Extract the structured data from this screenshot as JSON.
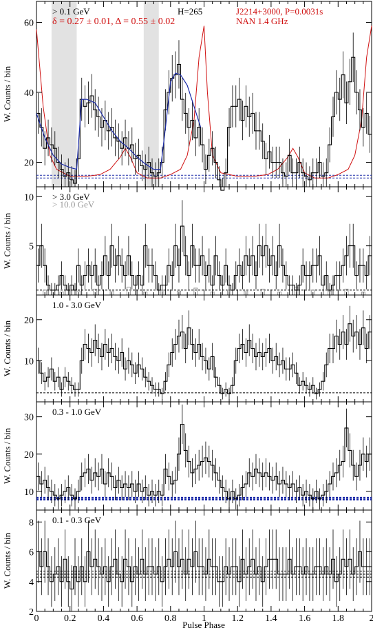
{
  "figure": {
    "xlabel": "Pulse Phase",
    "x_ticks": [
      "0",
      "0.2",
      "0.4",
      "0.6",
      "0.8",
      "1",
      "1.2",
      "1.4",
      "1.6",
      "1.8",
      "2"
    ]
  },
  "colors": {
    "axis": "#000000",
    "histogram": "#000000",
    "radio": "#d01010",
    "fit": "#1a2aa8",
    "background_line": "#1a2aa8",
    "excluded_region": "#e2e2e2",
    "high_energy": "#999999",
    "label_red": "#d01010"
  },
  "chart_data": [
    {
      "type": "line",
      "panel": "> 0.1 GeV",
      "ylabel": "W. Counts / bin",
      "ylim": [
        13,
        66
      ],
      "y_ticks": [
        20,
        40,
        60
      ],
      "label": "> 0.1 GeV",
      "h_test": "H=265",
      "source": "J2214+3000, P=0.0031s",
      "radio": "NAN 1.4 GHz",
      "fit_params": "δ = 0.27 ± 0.01, Δ = 0.55 ± 0.02",
      "shaded_phases": [
        [
          0.09,
          0.24
        ],
        [
          0.64,
          0.73
        ]
      ],
      "background_levels": [
        15.5,
        16.3
      ],
      "x_bin_width": 0.02,
      "values": [
        34,
        30,
        24,
        27,
        25,
        24,
        20,
        18,
        16,
        17,
        15,
        14,
        21,
        38,
        36,
        37,
        39,
        35,
        33,
        30,
        32,
        29,
        30,
        27,
        26,
        24,
        27,
        24,
        25,
        21,
        22,
        19,
        18,
        20,
        17,
        16,
        17,
        20,
        35,
        40,
        44,
        45,
        48,
        38,
        34,
        30,
        32,
        27,
        30,
        25,
        18,
        22,
        24,
        20,
        15,
        12,
        17,
        30,
        36,
        36,
        38,
        32,
        36,
        33,
        34,
        29,
        29,
        26,
        21,
        23,
        20,
        20,
        20,
        17,
        16,
        22,
        17,
        17,
        20,
        17,
        16,
        15,
        17,
        17,
        20,
        16,
        17,
        25,
        33,
        40,
        38,
        45,
        37,
        43,
        50,
        40,
        35,
        30,
        34,
        28
      ],
      "fit_curve": [
        [
          0.0,
          34
        ],
        [
          0.05,
          27
        ],
        [
          0.1,
          22
        ],
        [
          0.15,
          19.5
        ],
        [
          0.2,
          18.5
        ],
        [
          0.24,
          18
        ],
        [
          0.27,
          38
        ],
        [
          0.3,
          38
        ],
        [
          0.35,
          37
        ],
        [
          0.4,
          33
        ],
        [
          0.45,
          29
        ],
        [
          0.5,
          26
        ],
        [
          0.55,
          24
        ],
        [
          0.6,
          21.5
        ],
        [
          0.65,
          19.5
        ],
        [
          0.7,
          18
        ],
        [
          0.74,
          18
        ],
        [
          0.77,
          30
        ],
        [
          0.8,
          43
        ],
        [
          0.83,
          45.5
        ],
        [
          0.86,
          45
        ],
        [
          0.9,
          42
        ],
        [
          0.94,
          36
        ],
        [
          0.98,
          30
        ]
      ],
      "radio_profile": [
        [
          0.0,
          58
        ],
        [
          0.04,
          36
        ],
        [
          0.08,
          22
        ],
        [
          0.12,
          18
        ],
        [
          0.2,
          16
        ],
        [
          0.3,
          16
        ],
        [
          0.38,
          16.5
        ],
        [
          0.44,
          18
        ],
        [
          0.5,
          21.5
        ],
        [
          0.53,
          24
        ],
        [
          0.56,
          21.5
        ],
        [
          0.6,
          17
        ],
        [
          0.66,
          15.5
        ],
        [
          0.74,
          15.5
        ],
        [
          0.8,
          16.5
        ],
        [
          0.86,
          18
        ],
        [
          0.9,
          22
        ],
        [
          0.94,
          32
        ],
        [
          0.97,
          50
        ],
        [
          1.0,
          59
        ],
        [
          1.02,
          40
        ],
        [
          1.05,
          22
        ],
        [
          1.1,
          17
        ],
        [
          1.2,
          16
        ],
        [
          1.3,
          16
        ],
        [
          1.38,
          16.5
        ],
        [
          1.44,
          18
        ],
        [
          1.5,
          21.5
        ],
        [
          1.53,
          24
        ],
        [
          1.56,
          21.5
        ],
        [
          1.6,
          17
        ],
        [
          1.66,
          15.5
        ],
        [
          1.74,
          15.5
        ],
        [
          1.8,
          16.5
        ],
        [
          1.86,
          18
        ],
        [
          1.9,
          22
        ],
        [
          1.94,
          32
        ],
        [
          1.97,
          50
        ],
        [
          2.0,
          59
        ]
      ]
    },
    {
      "type": "line",
      "panel": "> 3.0 GeV",
      "ylabel": "W. Counts / bin",
      "ylim": [
        0,
        11
      ],
      "y_ticks": [
        5,
        10
      ],
      "label": "> 3.0 GeV",
      "label2": "> 10.0 GeV",
      "background_levels": [
        0.5
      ],
      "x_bin_width": 0.02,
      "values": [
        3,
        5,
        3,
        1,
        0.5,
        0.5,
        1,
        2,
        1,
        0.5,
        1,
        0.5,
        3,
        1,
        2,
        3,
        2,
        3,
        1,
        2,
        4,
        2,
        5,
        3,
        4,
        3,
        2,
        4,
        2,
        1,
        2,
        1,
        5,
        3,
        3,
        2,
        0.5,
        1,
        1,
        3,
        2,
        5,
        3,
        7,
        4,
        2,
        5,
        3,
        3,
        4,
        2,
        3,
        1,
        4,
        2,
        1,
        3,
        1,
        0.5,
        2,
        3,
        2,
        4,
        3,
        4,
        2,
        5,
        4,
        5,
        3,
        4,
        2,
        5,
        3,
        2,
        1,
        1,
        0.5,
        1,
        3,
        2,
        2,
        3,
        3,
        4,
        1,
        2,
        0.5,
        1,
        2,
        2,
        3,
        4,
        5,
        5,
        2,
        3,
        3,
        2,
        4
      ],
      "high_energy_values": [
        0.5,
        0.3,
        0.4,
        0.6,
        0.4,
        0.8,
        0.3,
        0.5,
        0.4,
        0.7,
        0.3,
        0.5,
        0.4,
        0.6,
        0.3,
        0.8,
        0.5,
        0.4,
        0.6,
        0.3
      ],
      "high_energy_x_bin_width": 0.1
    },
    {
      "type": "line",
      "panel": "1.0 - 3.0 GeV",
      "ylabel": "W. Counts / bin",
      "ylim": [
        0,
        26
      ],
      "y_ticks": [
        10,
        20
      ],
      "label": "1.0 - 3.0 GeV",
      "background_levels": [
        2.2
      ],
      "x_bin_width": 0.02,
      "values": [
        10,
        7,
        5,
        6,
        8,
        5,
        6,
        3,
        6,
        5,
        4,
        3,
        3,
        10,
        14,
        13,
        12,
        15,
        13,
        11,
        14,
        12,
        13,
        11,
        10,
        12,
        8,
        10,
        9,
        7,
        9,
        8,
        6,
        5,
        4,
        3,
        3,
        2,
        5,
        9,
        12,
        14,
        16,
        17,
        13,
        18,
        14,
        12,
        14,
        11,
        10,
        8,
        11,
        6,
        4,
        2,
        3,
        2,
        4,
        10,
        13,
        14,
        12,
        15,
        13,
        11,
        12,
        11,
        12,
        13,
        10,
        11,
        9,
        10,
        8,
        8,
        9,
        7,
        4,
        5,
        4,
        3,
        4,
        2,
        3,
        5,
        9,
        13,
        13,
        16,
        14,
        17,
        14,
        19,
        16,
        17,
        14,
        18,
        13,
        17
      ]
    },
    {
      "type": "line",
      "panel": "0.3 - 1.0 GeV",
      "ylabel": "W. Counts / bin",
      "ylim": [
        5,
        34
      ],
      "y_ticks": [
        10,
        20,
        30
      ],
      "label": "0.3 - 1.0 GeV",
      "background_levels": [
        7.8,
        8.3
      ],
      "x_bin_width": 0.02,
      "values": [
        14,
        12,
        13,
        11,
        10,
        9,
        8,
        9,
        10,
        11,
        9,
        8,
        10,
        14,
        15,
        16,
        13,
        15,
        14,
        16,
        12,
        15,
        14,
        11,
        13,
        11,
        12,
        11,
        12,
        10,
        12,
        10,
        11,
        9,
        10,
        9,
        10,
        9,
        16,
        14,
        12,
        13,
        20,
        28,
        21,
        18,
        15,
        16,
        17,
        18,
        19,
        18,
        17,
        15,
        13,
        11,
        10,
        8,
        10,
        8,
        9,
        11,
        12,
        15,
        14,
        16,
        15,
        14,
        15,
        14,
        13,
        14,
        12,
        13,
        12,
        11,
        12,
        10,
        11,
        9,
        10,
        9,
        8,
        10,
        8,
        9,
        10,
        12,
        14,
        15,
        17,
        18,
        27,
        21,
        17,
        14,
        17,
        20,
        18,
        20
      ]
    },
    {
      "type": "line",
      "panel": "0.1 - 0.3 GeV",
      "ylabel": "W. Counts / bin",
      "ylim": [
        2,
        8.8
      ],
      "y_ticks": [
        2,
        4,
        6,
        8
      ],
      "label": "0.1 - 0.3 GeV",
      "background_levels": [
        4.3,
        4.5,
        4.7
      ],
      "x_bin_width": 0.02,
      "values": [
        6,
        5,
        6,
        5,
        4,
        4.5,
        5,
        4,
        5.5,
        4,
        3.5,
        5,
        4,
        5,
        4,
        6,
        5,
        5.5,
        5,
        4.5,
        5,
        4,
        5,
        5.5,
        4.5,
        4,
        5.5,
        5,
        4,
        5,
        4.5,
        5.5,
        4.5,
        5,
        5,
        4.5,
        5,
        4,
        5,
        5.5,
        5,
        6,
        5,
        5.5,
        4.5,
        5.5,
        5,
        6,
        5,
        5,
        4.5,
        5.5,
        5,
        5,
        4,
        4,
        5,
        4.5,
        5,
        5,
        4,
        5.5,
        4.5,
        5,
        5.5,
        4.5,
        5,
        4,
        5,
        5.5,
        5.5,
        5.5,
        4.5,
        4.5,
        4.5,
        5.5,
        4.5,
        5,
        5,
        4.5,
        5,
        4.5,
        4.5,
        5,
        5,
        4.5,
        5,
        4.5,
        5.5,
        4,
        4.5,
        5.5,
        5,
        5.5,
        4.5,
        5,
        6,
        5,
        5,
        5
      ]
    }
  ]
}
